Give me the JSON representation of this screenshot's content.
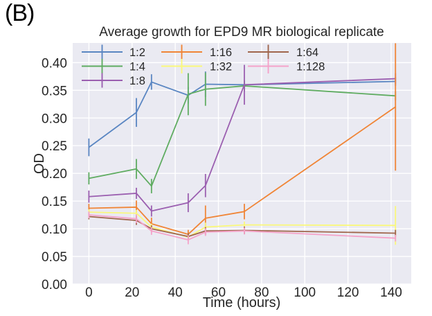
{
  "figure_label": "(B)",
  "style": {
    "page_bg": "#FFFFFF",
    "plot_bg": "#EAEAF2",
    "grid_color": "#FFFFFF",
    "text_color": "#262626"
  },
  "chart_data": {
    "type": "line",
    "title": "Average growth for EPD9 MR biological replicate",
    "xlabel": "Time (hours)",
    "ylabel": "OD",
    "grid": true,
    "error_bars": true,
    "legend_position": "upper left inside plot, 3 columns, no frame",
    "xlim": [
      -7.5,
      149.3
    ],
    "ylim": [
      0,
      0.4355
    ],
    "x_ticks": [
      0,
      20,
      40,
      60,
      80,
      100,
      120,
      140
    ],
    "y_ticks": [
      0.0,
      0.05,
      0.1,
      0.15,
      0.2,
      0.25,
      0.3,
      0.35,
      0.4
    ],
    "x": [
      0,
      22,
      29,
      46,
      54,
      72,
      142
    ],
    "series": [
      {
        "name": "1:2",
        "color": "#5A86C2",
        "values": [
          0.247,
          0.31,
          0.365,
          0.341,
          0.361,
          0.36,
          0.366
        ],
        "errors": [
          0.016,
          0.026,
          0.014,
          0.015,
          0.023,
          0.008,
          0.008
        ]
      },
      {
        "name": "1:4",
        "color": "#5FAC61",
        "values": [
          0.191,
          0.208,
          0.177,
          0.343,
          0.352,
          0.358,
          0.34
        ],
        "errors": [
          0.011,
          0.018,
          0.013,
          0.038,
          0.03,
          0.01,
          0.008
        ]
      },
      {
        "name": "1:8",
        "color": "#9B5FB0",
        "values": [
          0.158,
          0.164,
          0.132,
          0.147,
          0.178,
          0.36,
          0.371
        ],
        "errors": [
          0.011,
          0.01,
          0.01,
          0.017,
          0.021,
          0.036,
          0.01
        ]
      },
      {
        "name": "1:16",
        "color": "#F08536",
        "values": [
          0.137,
          0.139,
          0.109,
          0.09,
          0.119,
          0.131,
          0.32
        ],
        "errors": [
          0.008,
          0.012,
          0.011,
          0.008,
          0.023,
          0.014,
          0.115
        ]
      },
      {
        "name": "1:32",
        "color": "#FAF87B",
        "values": [
          0.13,
          0.128,
          0.103,
          0.085,
          0.103,
          0.107,
          0.106
        ],
        "errors": [
          0.005,
          0.006,
          0.006,
          0.006,
          0.008,
          0.006,
          0.035
        ]
      },
      {
        "name": "1:64",
        "color": "#A0664C",
        "values": [
          0.122,
          0.115,
          0.1,
          0.086,
          0.096,
          0.097,
          0.092
        ],
        "errors": [
          0.005,
          0.008,
          0.006,
          0.006,
          0.007,
          0.007,
          0.006
        ]
      },
      {
        "name": "1:128",
        "color": "#F5A2C9",
        "values": [
          0.125,
          0.118,
          0.096,
          0.08,
          0.094,
          0.096,
          0.083
        ],
        "errors": [
          0.006,
          0.008,
          0.007,
          0.008,
          0.007,
          0.006,
          0.006
        ]
      }
    ]
  }
}
